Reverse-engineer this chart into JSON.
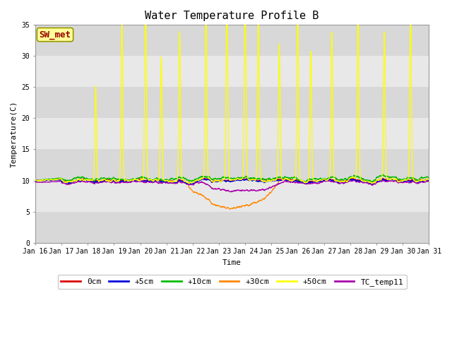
{
  "title": "Water Temperature Profile B",
  "xlabel": "Time",
  "ylabel": "Temperature(C)",
  "ylim": [
    0,
    35
  ],
  "tick_labels": [
    "Jan 16",
    "Jan 17",
    "Jan 18",
    "Jan 19",
    "Jan 20",
    "Jan 21",
    "Jan 22",
    "Jan 23",
    "Jan 24",
    "Jan 25",
    "Jan 26",
    "Jan 27",
    "Jan 28",
    "Jan 29",
    "Jan 30",
    "Jan 31"
  ],
  "annotation_text": "SW_met",
  "annotation_color": "#990000",
  "annotation_bg": "#ffff99",
  "annotation_edge": "#999900",
  "series_colors": {
    "0cm": "#dd0000",
    "+5cm": "#0000dd",
    "+10cm": "#00bb00",
    "+30cm": "#ff8800",
    "+50cm": "#ffff00",
    "TC_temp11": "#aa00aa"
  },
  "band_dark": "#d8d8d8",
  "band_light": "#e8e8e8",
  "fig_bg": "#ffffff",
  "font_family": "monospace",
  "title_fontsize": 11,
  "label_fontsize": 8,
  "tick_fontsize": 7,
  "legend_fontsize": 8,
  "linewidth": 0.9
}
